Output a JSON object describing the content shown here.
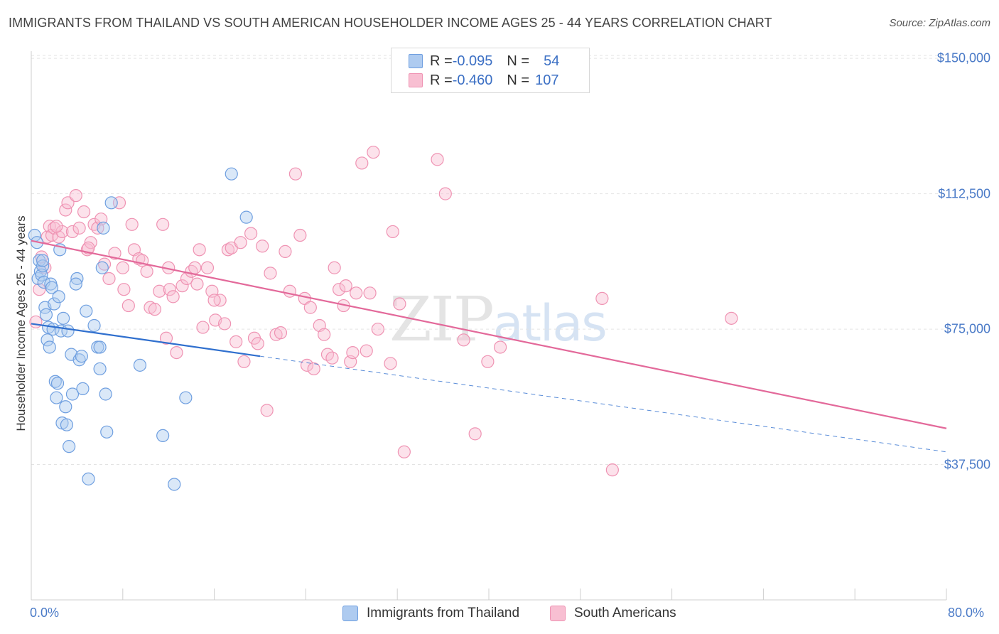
{
  "title": "IMMIGRANTS FROM THAILAND VS SOUTH AMERICAN HOUSEHOLDER INCOME AGES 25 - 44 YEARS CORRELATION CHART",
  "source": "Source: ZipAtlas.com",
  "watermark": {
    "zip": "ZIP",
    "atlas": "atlas"
  },
  "legend": {
    "r_label": "R = ",
    "n_label": "N = ",
    "rows": [
      {
        "r": "-0.095",
        "n": "54"
      },
      {
        "r": "-0.460",
        "n": "107"
      }
    ]
  },
  "colors": {
    "thailand_fill": "#aecbf0",
    "thailand_stroke": "#6f9fe0",
    "thailand_line": "#2f6fce",
    "south_fill": "#f8bfd2",
    "south_stroke": "#ef93b3",
    "south_line": "#e3699a",
    "tick_text": "#4a7ac7"
  },
  "chart_data": {
    "type": "scatter",
    "ylabel": "Householder Income Ages 25 - 44 years",
    "xlim": [
      0,
      80
    ],
    "ylim": [
      0,
      152000
    ],
    "x_tick_labels": [
      {
        "value": 0,
        "label": "0.0%"
      },
      {
        "value": 80,
        "label": "80.0%"
      }
    ],
    "y_ticks": [
      {
        "value": 37500,
        "label": "$37,500"
      },
      {
        "value": 75000,
        "label": "$75,000"
      },
      {
        "value": 112500,
        "label": "$112,500"
      },
      {
        "value": 150000,
        "label": "$150,000"
      }
    ],
    "grid": true,
    "series": [
      {
        "name": "Immigrants from Thailand",
        "r": -0.095,
        "n": 54,
        "trend": {
          "x0": 0,
          "y0": 76500,
          "x1": 20,
          "y1": 67500,
          "dash_to_x": 80,
          "dash_to_y": 41000
        },
        "points": [
          [
            0.3,
            101000
          ],
          [
            0.5,
            99000
          ],
          [
            0.6,
            89000
          ],
          [
            0.7,
            94000
          ],
          [
            0.8,
            91000
          ],
          [
            0.9,
            90000
          ],
          [
            1.0,
            92500
          ],
          [
            1.1,
            88000
          ],
          [
            1.2,
            81000
          ],
          [
            1.3,
            79000
          ],
          [
            1.4,
            72000
          ],
          [
            1.5,
            75500
          ],
          [
            1.6,
            70000
          ],
          [
            1.7,
            87500
          ],
          [
            1.8,
            86500
          ],
          [
            1.9,
            75000
          ],
          [
            2.0,
            82000
          ],
          [
            2.1,
            60500
          ],
          [
            2.2,
            56000
          ],
          [
            2.3,
            60000
          ],
          [
            2.4,
            84000
          ],
          [
            2.6,
            74500
          ],
          [
            2.7,
            49000
          ],
          [
            2.8,
            78000
          ],
          [
            3.0,
            53500
          ],
          [
            3.1,
            48500
          ],
          [
            3.2,
            74500
          ],
          [
            3.3,
            42500
          ],
          [
            3.5,
            68000
          ],
          [
            3.6,
            57000
          ],
          [
            4.0,
            89000
          ],
          [
            4.2,
            66500
          ],
          [
            4.5,
            58500
          ],
          [
            4.8,
            80000
          ],
          [
            5.0,
            33500
          ],
          [
            5.5,
            76000
          ],
          [
            5.8,
            70000
          ],
          [
            6.0,
            70000
          ],
          [
            6.2,
            92000
          ],
          [
            6.3,
            103000
          ],
          [
            6.5,
            57000
          ],
          [
            6.6,
            46500
          ],
          [
            7.0,
            110000
          ],
          [
            9.5,
            65000
          ],
          [
            11.5,
            45500
          ],
          [
            12.5,
            32000
          ],
          [
            13.5,
            56000
          ],
          [
            17.5,
            118000
          ],
          [
            18.8,
            106000
          ],
          [
            1.0,
            94000
          ],
          [
            2.5,
            97000
          ],
          [
            3.9,
            87500
          ],
          [
            6.0,
            64000
          ],
          [
            4.4,
            67500
          ]
        ]
      },
      {
        "name": "South Americans",
        "r": -0.46,
        "n": 107,
        "trend": {
          "x0": 0,
          "y0": 99500,
          "x1": 80,
          "y1": 47500
        },
        "points": [
          [
            0.4,
            77000
          ],
          [
            0.7,
            86000
          ],
          [
            0.9,
            95000
          ],
          [
            1.2,
            92000
          ],
          [
            1.4,
            100500
          ],
          [
            1.6,
            103500
          ],
          [
            1.8,
            101000
          ],
          [
            2.0,
            103000
          ],
          [
            2.4,
            100500
          ],
          [
            2.7,
            102000
          ],
          [
            3.0,
            108000
          ],
          [
            3.2,
            110000
          ],
          [
            3.6,
            102000
          ],
          [
            3.9,
            112000
          ],
          [
            4.2,
            103000
          ],
          [
            4.6,
            107500
          ],
          [
            4.9,
            97000
          ],
          [
            5.2,
            99000
          ],
          [
            5.5,
            104000
          ],
          [
            5.8,
            103000
          ],
          [
            6.1,
            105500
          ],
          [
            6.4,
            93000
          ],
          [
            6.8,
            89000
          ],
          [
            7.3,
            96000
          ],
          [
            7.7,
            110000
          ],
          [
            8.1,
            86000
          ],
          [
            8.5,
            81500
          ],
          [
            8.8,
            104000
          ],
          [
            9.0,
            97000
          ],
          [
            9.4,
            94500
          ],
          [
            9.7,
            94000
          ],
          [
            10.1,
            91000
          ],
          [
            10.4,
            81000
          ],
          [
            10.8,
            80500
          ],
          [
            11.2,
            85500
          ],
          [
            11.5,
            104000
          ],
          [
            11.8,
            72500
          ],
          [
            12.1,
            86000
          ],
          [
            12.4,
            84000
          ],
          [
            12.7,
            68500
          ],
          [
            13.2,
            87000
          ],
          [
            13.6,
            89000
          ],
          [
            14.0,
            91000
          ],
          [
            14.3,
            92000
          ],
          [
            14.7,
            97000
          ],
          [
            15.0,
            75500
          ],
          [
            15.4,
            92000
          ],
          [
            15.8,
            85500
          ],
          [
            16.1,
            77500
          ],
          [
            16.5,
            83000
          ],
          [
            16.9,
            76500
          ],
          [
            17.2,
            97000
          ],
          [
            17.5,
            97500
          ],
          [
            17.9,
            71500
          ],
          [
            18.3,
            99000
          ],
          [
            18.6,
            66000
          ],
          [
            19.2,
            101500
          ],
          [
            19.5,
            72500
          ],
          [
            19.8,
            71000
          ],
          [
            20.2,
            98000
          ],
          [
            20.6,
            52500
          ],
          [
            20.9,
            90500
          ],
          [
            21.4,
            73500
          ],
          [
            21.8,
            74000
          ],
          [
            22.2,
            96500
          ],
          [
            22.6,
            85500
          ],
          [
            23.1,
            118000
          ],
          [
            23.5,
            101000
          ],
          [
            23.9,
            83500
          ],
          [
            24.1,
            65000
          ],
          [
            24.4,
            81000
          ],
          [
            24.7,
            64000
          ],
          [
            25.2,
            76000
          ],
          [
            25.6,
            73500
          ],
          [
            25.9,
            68000
          ],
          [
            26.3,
            67000
          ],
          [
            26.5,
            92000
          ],
          [
            26.9,
            86000
          ],
          [
            27.3,
            81500
          ],
          [
            27.5,
            87000
          ],
          [
            27.9,
            66000
          ],
          [
            28.1,
            68500
          ],
          [
            28.4,
            85000
          ],
          [
            28.9,
            121000
          ],
          [
            29.3,
            69000
          ],
          [
            29.6,
            85000
          ],
          [
            29.9,
            124000
          ],
          [
            30.3,
            75000
          ],
          [
            31.4,
            65500
          ],
          [
            31.6,
            102000
          ],
          [
            32.2,
            82000
          ],
          [
            32.6,
            41000
          ],
          [
            35.5,
            122000
          ],
          [
            36.2,
            112500
          ],
          [
            37.8,
            72000
          ],
          [
            38.8,
            46000
          ],
          [
            39.9,
            66000
          ],
          [
            41.0,
            70000
          ],
          [
            49.9,
            83500
          ],
          [
            50.8,
            36000
          ],
          [
            61.2,
            78000
          ],
          [
            2.2,
            103500
          ],
          [
            5.0,
            97500
          ],
          [
            8.0,
            92000
          ],
          [
            12.0,
            92000
          ],
          [
            14.5,
            87500
          ],
          [
            16.0,
            83000
          ]
        ]
      }
    ]
  },
  "x_legend": [
    {
      "label": "Immigrants from Thailand"
    },
    {
      "label": "South Americans"
    }
  ]
}
